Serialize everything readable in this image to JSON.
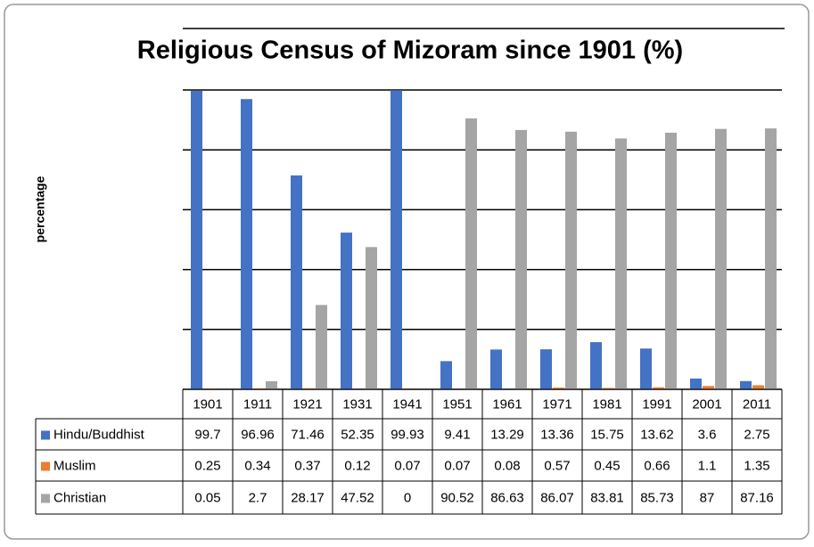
{
  "chart_data": {
    "type": "bar",
    "title": "Religious Census of Mizoram since 1901 (%)",
    "y_label": "percentage",
    "categories": [
      "1901",
      "1911",
      "1921",
      "1931",
      "1941",
      "1951",
      "1961",
      "1971",
      "1981",
      "1991",
      "2001",
      "2011"
    ],
    "series": [
      {
        "name": "Hindu/Buddhist",
        "color": "#4472c4",
        "values": [
          99.7,
          96.96,
          71.46,
          52.35,
          99.93,
          9.41,
          13.29,
          13.36,
          15.75,
          13.62,
          3.6,
          2.75
        ]
      },
      {
        "name": "Muslim",
        "color": "#ed7d31",
        "values": [
          0.25,
          0.34,
          0.37,
          0.12,
          0.07,
          0.07,
          0.08,
          0.57,
          0.45,
          0.66,
          1.1,
          1.35
        ]
      },
      {
        "name": "Christian",
        "color": "#a5a5a5",
        "values": [
          0.05,
          2.7,
          28.17,
          47.52,
          0,
          90.52,
          86.63,
          86.07,
          83.81,
          85.73,
          87,
          87.16
        ]
      }
    ],
    "ylim": [
      0,
      100
    ],
    "yticks": [
      0,
      20,
      40,
      60,
      80,
      100
    ],
    "grid": true
  }
}
